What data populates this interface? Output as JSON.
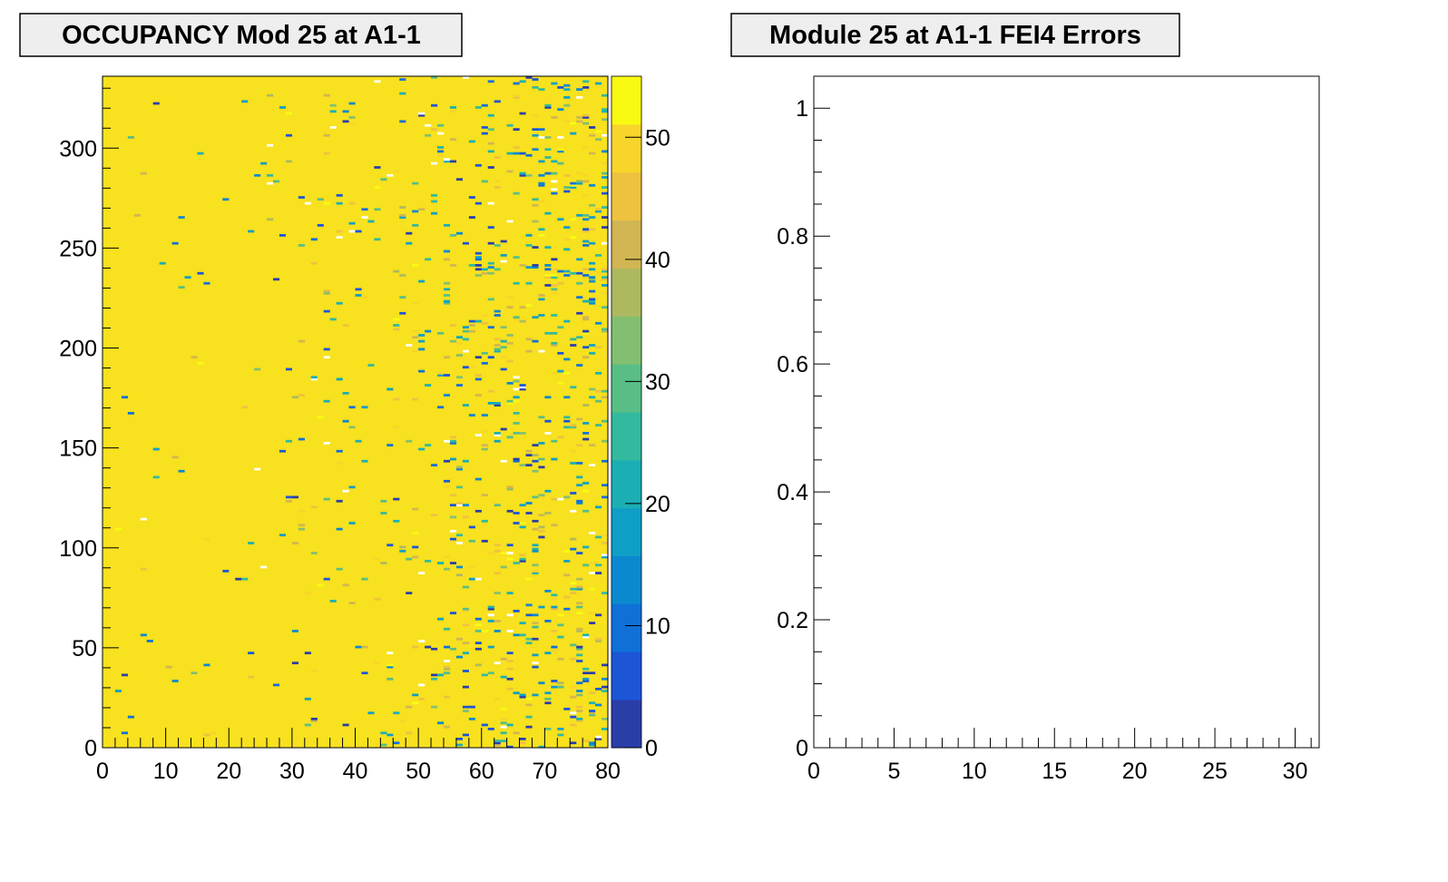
{
  "chart_data": [
    {
      "type": "heatmap",
      "title": "OCCUPANCY Mod 25 at A1-1",
      "xlabel": "",
      "ylabel": "",
      "xlim": [
        0,
        80
      ],
      "ylim": [
        0,
        336
      ],
      "x_ticks": [
        "0",
        "10",
        "20",
        "30",
        "40",
        "50",
        "60",
        "70",
        "80"
      ],
      "y_ticks": [
        "0",
        "50",
        "100",
        "150",
        "200",
        "250",
        "300"
      ],
      "z_range": [
        0,
        55
      ],
      "colorbar_ticks": [
        "0",
        "10",
        "20",
        "30",
        "40",
        "50"
      ],
      "colormap": "viridis-like (blue to yellow)",
      "dominant_value": 52,
      "colors": {
        "dominant": "#f8e11e",
        "low": "#2a3ea8",
        "high": "#f9fa12"
      },
      "pattern": "Nearly all pixels at maximum occupancy; scattered lower-occupancy pixels increase in density toward high column numbers (x > 50)."
    },
    {
      "type": "bar",
      "title": "Module 25 at A1-1 FEI4 Errors",
      "xlabel": "",
      "ylabel": "",
      "xlim": [
        0,
        31.5
      ],
      "ylim": [
        0,
        1.05
      ],
      "x_ticks": [
        "0",
        "5",
        "10",
        "15",
        "20",
        "25",
        "30"
      ],
      "y_ticks": [
        "0",
        "0.2",
        "0.4",
        "0.6",
        "0.8",
        "1"
      ],
      "values": []
    }
  ]
}
